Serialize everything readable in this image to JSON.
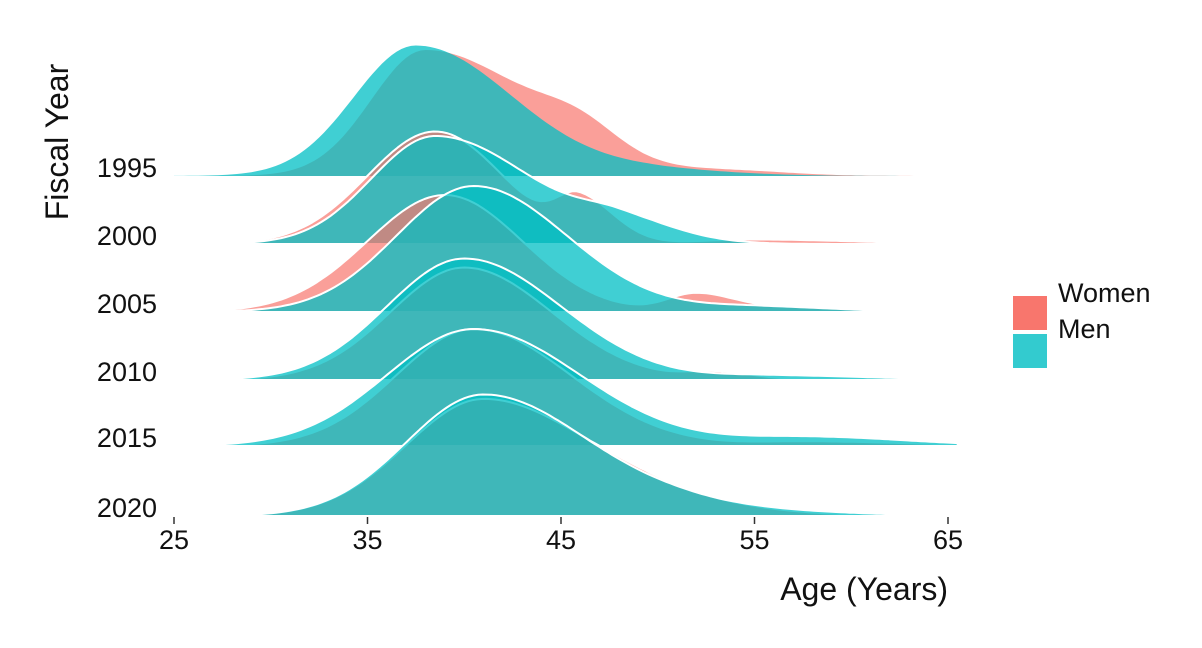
{
  "chart_data": {
    "type": "ridgeline",
    "xlabel": "Age (Years)",
    "ylabel": "Fiscal Year",
    "xlim": [
      25,
      65
    ],
    "x_ticks": [
      25,
      35,
      45,
      55,
      65
    ],
    "categories": [
      "1995",
      "2000",
      "2005",
      "2010",
      "2015",
      "2020"
    ],
    "grid": false,
    "legend": {
      "placement": "right",
      "items": [
        {
          "label": "Women",
          "color": "#F8766D"
        },
        {
          "label": "Men",
          "color": "#00BFC4"
        }
      ]
    },
    "series": [
      {
        "name": "Women",
        "color": "#F8766D",
        "ridges": [
          {
            "year": "1995",
            "x_range": [
              25,
              65
            ],
            "peaks": [
              [
                38,
                1.4,
                2.8,
                5.5
              ],
              [
                46,
                0.25,
                2.0,
                2.0
              ],
              [
                54,
                0.05,
                3.0,
                3.0
              ]
            ]
          },
          {
            "year": "2000",
            "x_range": [
              28,
              65
            ],
            "peaks": [
              [
                38.5,
                1.25,
                3.5,
                3.5
              ],
              [
                46,
                0.45,
                1.2,
                1.8
              ],
              [
                55,
                0.05,
                3.0,
                5.0
              ]
            ]
          },
          {
            "year": "2005",
            "x_range": [
              28,
              65
            ],
            "peaks": [
              [
                39,
                1.3,
                4.0,
                4.0
              ],
              [
                52,
                0.2,
                1.5,
                2.0
              ],
              [
                58,
                0.05,
                3.0,
                3.0
              ]
            ]
          },
          {
            "year": "2010",
            "x_range": [
              28,
              65
            ],
            "peaks": [
              [
                40,
                1.25,
                3.8,
                4.5
              ],
              [
                53,
                0.08,
                1.5,
                2.0
              ]
            ]
          },
          {
            "year": "2015",
            "x_range": [
              28,
              65
            ],
            "peaks": [
              [
                40.5,
                1.3,
                4.0,
                5.0
              ],
              [
                58,
                0.05,
                3.0,
                5.0
              ]
            ]
          },
          {
            "year": "2020",
            "x_range": [
              28,
              65.5
            ],
            "peaks": [
              [
                41,
                1.3,
                4.0,
                5.5
              ],
              [
                50,
                0.1,
                3.0,
                5.0
              ]
            ]
          }
        ]
      },
      {
        "name": "Men",
        "color": "#00BFC4",
        "ridges": [
          {
            "year": "1995",
            "x_range": [
              25,
              65
            ],
            "peaks": [
              [
                37.5,
                1.45,
                3.2,
                5.0
              ],
              [
                50,
                0.06,
                3.0,
                4.0
              ]
            ]
          },
          {
            "year": "2000",
            "x_range": [
              28,
              65
            ],
            "peaks": [
              [
                38.5,
                1.2,
                3.3,
                5.0
              ],
              [
                48,
                0.2,
                2.0,
                3.0
              ]
            ]
          },
          {
            "year": "2005",
            "x_range": [
              28,
              65
            ],
            "peaks": [
              [
                40.5,
                1.4,
                4.0,
                4.8
              ],
              [
                55,
                0.06,
                3.0,
                4.0
              ]
            ]
          },
          {
            "year": "2010",
            "x_range": [
              28,
              65
            ],
            "peaks": [
              [
                40,
                1.35,
                4.0,
                5.0
              ],
              [
                56,
                0.05,
                3.0,
                5.0
              ]
            ]
          },
          {
            "year": "2015",
            "x_range": [
              27.5,
              65.5
            ],
            "peaks": [
              [
                40.5,
                1.3,
                4.5,
                5.5
              ],
              [
                58,
                0.1,
                4.0,
                5.0
              ]
            ]
          },
          {
            "year": "2020",
            "x_range": [
              28,
              65
            ],
            "peaks": [
              [
                41,
                1.35,
                4.0,
                5.5
              ],
              [
                52,
                0.08,
                3.0,
                6.0
              ]
            ]
          }
        ]
      }
    ]
  }
}
